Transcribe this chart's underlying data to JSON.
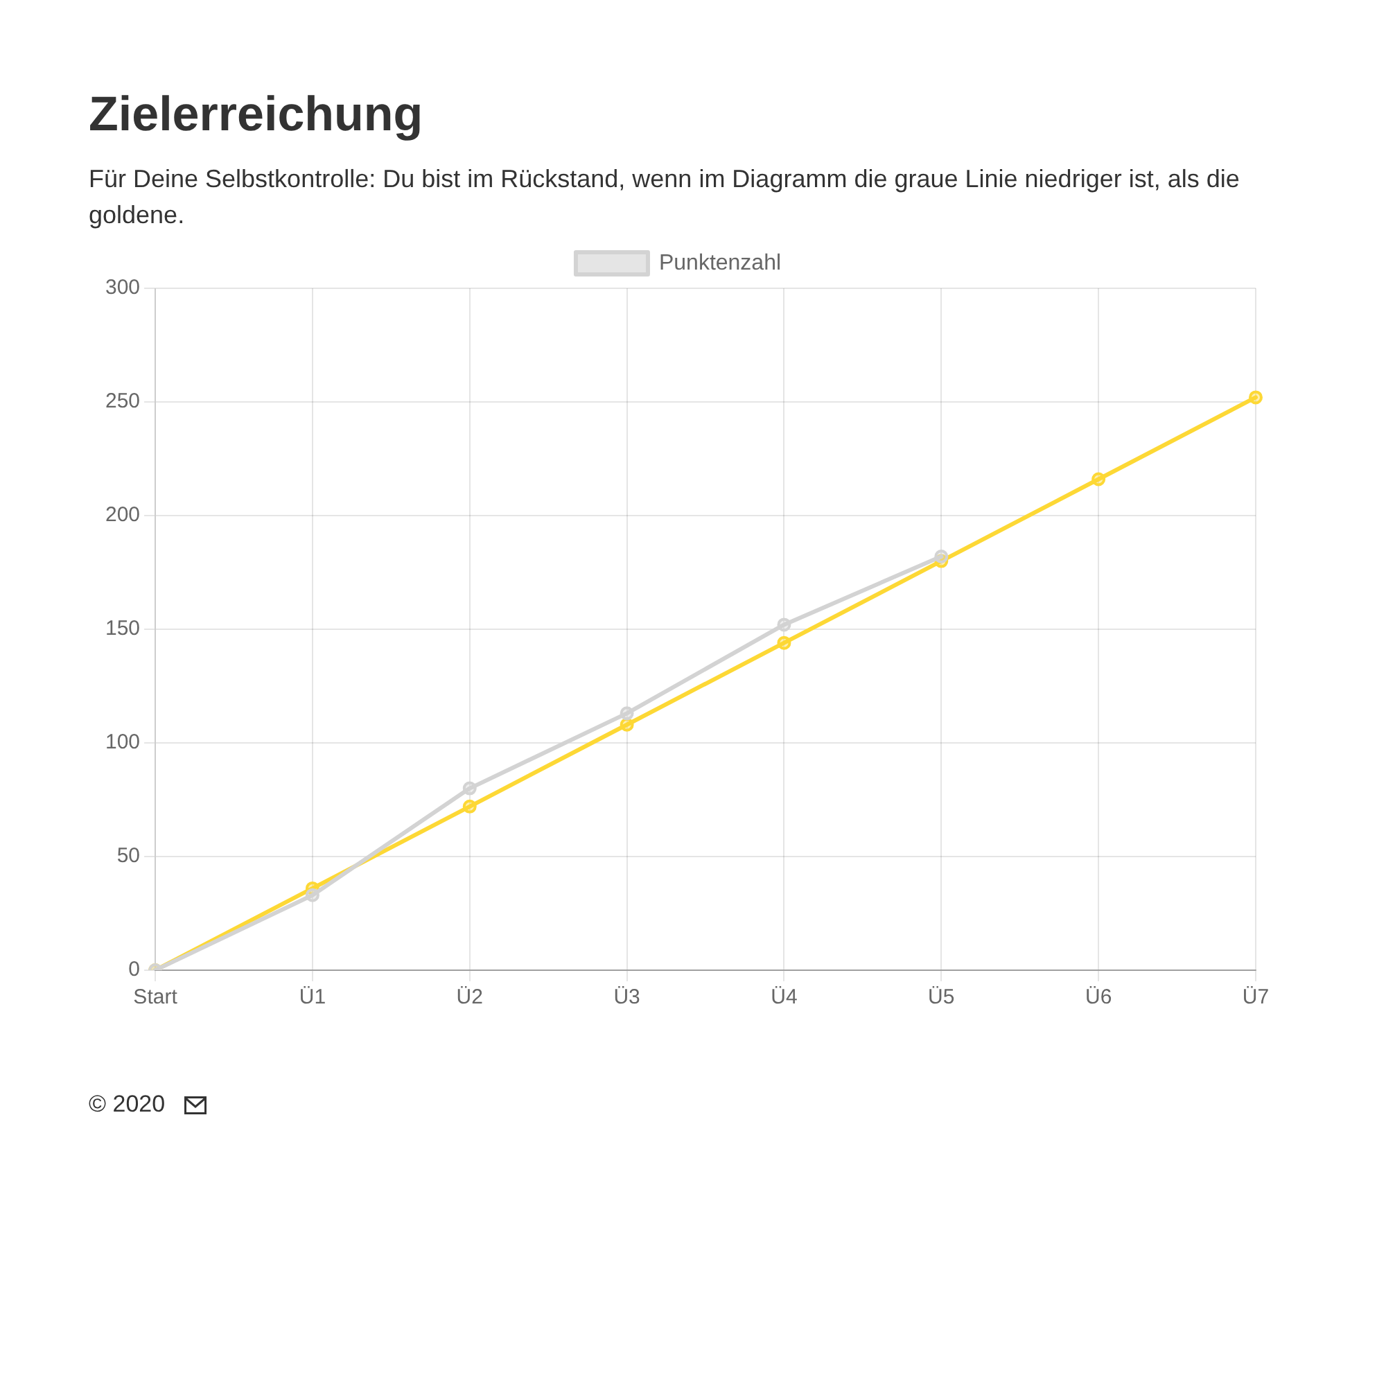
{
  "chart_data": {
    "type": "line",
    "title": "Zielerreichung",
    "subtitle": "Für Deine Selbstkontrolle: Du bist im Rückstand, wenn im Diagramm die graue Linie niedriger ist, als die goldene.",
    "annotations": [
      "© 2020"
    ],
    "categories": [
      "Start",
      "Ü1",
      "Ü2",
      "Ü3",
      "Ü4",
      "Ü5",
      "Ü6",
      "Ü7"
    ],
    "series": [
      {
        "name": "Punktenzahl",
        "color": "#d3d3d3",
        "values": [
          0,
          33,
          80,
          113,
          152,
          182,
          null,
          null
        ]
      },
      {
        "color": "#fdd835",
        "values": [
          0,
          36,
          72,
          108,
          144,
          180,
          216,
          252
        ]
      }
    ],
    "ylim": [
      0,
      300
    ],
    "yticks": [
      0,
      50,
      100,
      150,
      200,
      250,
      300
    ],
    "grid": true,
    "legend": "top",
    "marker": "circle",
    "line_style": "solid"
  }
}
